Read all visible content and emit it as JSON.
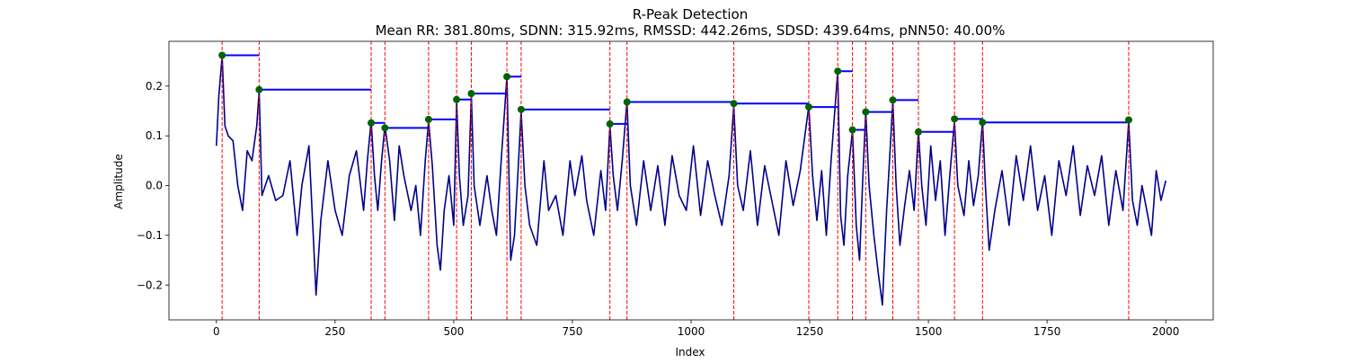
{
  "chart_data": {
    "type": "line",
    "title": "R-Peak Detection",
    "subtitle": "Mean RR: 381.80ms, SDNN: 315.92ms, RMSSD: 442.26ms, SDSD: 439.64ms, pNN50: 40.00%",
    "xlabel": "Index",
    "ylabel": "Amplitude",
    "xlim": [
      -100,
      2100
    ],
    "ylim": [
      -0.27,
      0.29
    ],
    "x_ticks": [
      0,
      250,
      500,
      750,
      1000,
      1250,
      1500,
      1750,
      2000
    ],
    "x_tick_labels": [
      "0",
      "250",
      "500",
      "750",
      "1000",
      "1250",
      "1500",
      "1750",
      "2000"
    ],
    "y_ticks": [
      -0.2,
      -0.1,
      0.0,
      0.1,
      0.2
    ],
    "y_tick_labels": [
      "−0.2",
      "−0.1",
      "0.0",
      "0.1",
      "0.2"
    ],
    "grid": false,
    "signal": {
      "color": "#00008b",
      "keypoints": [
        [
          0,
          0.08
        ],
        [
          5,
          0.18
        ],
        [
          12,
          0.26
        ],
        [
          18,
          0.12
        ],
        [
          25,
          0.1
        ],
        [
          35,
          0.09
        ],
        [
          45,
          0.0
        ],
        [
          55,
          -0.05
        ],
        [
          65,
          0.07
        ],
        [
          75,
          0.05
        ],
        [
          85,
          0.12
        ],
        [
          90,
          0.19
        ],
        [
          96,
          -0.02
        ],
        [
          110,
          0.02
        ],
        [
          125,
          -0.03
        ],
        [
          140,
          -0.02
        ],
        [
          155,
          0.05
        ],
        [
          170,
          -0.1
        ],
        [
          180,
          0.0
        ],
        [
          195,
          0.08
        ],
        [
          205,
          -0.12
        ],
        [
          210,
          -0.22
        ],
        [
          220,
          -0.07
        ],
        [
          235,
          0.05
        ],
        [
          250,
          -0.05
        ],
        [
          265,
          -0.1
        ],
        [
          280,
          0.02
        ],
        [
          295,
          0.07
        ],
        [
          310,
          -0.05
        ],
        [
          318,
          0.05
        ],
        [
          326,
          0.13
        ],
        [
          333,
          0.02
        ],
        [
          340,
          -0.05
        ],
        [
          348,
          0.05
        ],
        [
          355,
          0.12
        ],
        [
          365,
          0.05
        ],
        [
          375,
          -0.07
        ],
        [
          385,
          0.08
        ],
        [
          395,
          0.02
        ],
        [
          410,
          -0.05
        ],
        [
          420,
          0.0
        ],
        [
          430,
          -0.1
        ],
        [
          440,
          0.05
        ],
        [
          447,
          0.13
        ],
        [
          455,
          0.04
        ],
        [
          465,
          -0.12
        ],
        [
          472,
          -0.17
        ],
        [
          480,
          -0.05
        ],
        [
          490,
          0.02
        ],
        [
          500,
          -0.08
        ],
        [
          506,
          0.17
        ],
        [
          512,
          0.02
        ],
        [
          520,
          -0.08
        ],
        [
          530,
          -0.02
        ],
        [
          537,
          0.18
        ],
        [
          543,
          0.0
        ],
        [
          555,
          -0.08
        ],
        [
          570,
          0.02
        ],
        [
          580,
          -0.05
        ],
        [
          590,
          -0.1
        ],
        [
          600,
          0.05
        ],
        [
          612,
          0.22
        ],
        [
          620,
          -0.15
        ],
        [
          628,
          -0.1
        ],
        [
          635,
          0.02
        ],
        [
          642,
          0.15
        ],
        [
          650,
          0.0
        ],
        [
          660,
          -0.08
        ],
        [
          675,
          -0.12
        ],
        [
          690,
          0.05
        ],
        [
          700,
          -0.05
        ],
        [
          715,
          -0.02
        ],
        [
          730,
          -0.1
        ],
        [
          745,
          0.05
        ],
        [
          755,
          -0.02
        ],
        [
          770,
          0.06
        ],
        [
          780,
          -0.03
        ],
        [
          795,
          -0.1
        ],
        [
          810,
          0.03
        ],
        [
          820,
          -0.05
        ],
        [
          829,
          0.12
        ],
        [
          836,
          0.02
        ],
        [
          845,
          -0.05
        ],
        [
          855,
          0.05
        ],
        [
          865,
          0.17
        ],
        [
          872,
          0.0
        ],
        [
          885,
          -0.08
        ],
        [
          900,
          0.05
        ],
        [
          915,
          -0.05
        ],
        [
          930,
          0.04
        ],
        [
          945,
          -0.08
        ],
        [
          960,
          0.06
        ],
        [
          975,
          -0.02
        ],
        [
          990,
          -0.05
        ],
        [
          1005,
          0.08
        ],
        [
          1020,
          -0.06
        ],
        [
          1035,
          0.05
        ],
        [
          1050,
          -0.02
        ],
        [
          1065,
          -0.08
        ],
        [
          1080,
          0.02
        ],
        [
          1090,
          0.16
        ],
        [
          1098,
          0.0
        ],
        [
          1110,
          -0.05
        ],
        [
          1125,
          0.07
        ],
        [
          1140,
          -0.08
        ],
        [
          1155,
          0.04
        ],
        [
          1170,
          -0.03
        ],
        [
          1185,
          -0.1
        ],
        [
          1200,
          0.05
        ],
        [
          1215,
          -0.04
        ],
        [
          1230,
          0.03
        ],
        [
          1248,
          0.16
        ],
        [
          1256,
          0.02
        ],
        [
          1265,
          -0.07
        ],
        [
          1275,
          0.03
        ],
        [
          1285,
          -0.1
        ],
        [
          1295,
          0.05
        ],
        [
          1309,
          0.23
        ],
        [
          1315,
          -0.06
        ],
        [
          1322,
          -0.12
        ],
        [
          1330,
          0.02
        ],
        [
          1340,
          0.11
        ],
        [
          1348,
          -0.08
        ],
        [
          1355,
          -0.15
        ],
        [
          1362,
          0.02
        ],
        [
          1368,
          0.15
        ],
        [
          1375,
          0.0
        ],
        [
          1385,
          -0.1
        ],
        [
          1395,
          -0.18
        ],
        [
          1403,
          -0.24
        ],
        [
          1412,
          -0.05
        ],
        [
          1418,
          0.05
        ],
        [
          1425,
          0.17
        ],
        [
          1432,
          0.0
        ],
        [
          1440,
          -0.12
        ],
        [
          1450,
          -0.04
        ],
        [
          1460,
          0.03
        ],
        [
          1470,
          -0.05
        ],
        [
          1479,
          0.11
        ],
        [
          1486,
          0.0
        ],
        [
          1495,
          -0.08
        ],
        [
          1505,
          0.08
        ],
        [
          1515,
          -0.03
        ],
        [
          1525,
          0.05
        ],
        [
          1535,
          -0.1
        ],
        [
          1545,
          0.02
        ],
        [
          1555,
          0.13
        ],
        [
          1562,
          0.0
        ],
        [
          1575,
          -0.06
        ],
        [
          1585,
          0.05
        ],
        [
          1595,
          -0.04
        ],
        [
          1605,
          0.02
        ],
        [
          1614,
          0.13
        ],
        [
          1620,
          0.0
        ],
        [
          1628,
          -0.13
        ],
        [
          1640,
          -0.05
        ],
        [
          1655,
          0.03
        ],
        [
          1670,
          -0.08
        ],
        [
          1685,
          0.06
        ],
        [
          1700,
          -0.03
        ],
        [
          1715,
          0.08
        ],
        [
          1730,
          -0.05
        ],
        [
          1745,
          0.02
        ],
        [
          1760,
          -0.1
        ],
        [
          1775,
          0.05
        ],
        [
          1790,
          -0.02
        ],
        [
          1805,
          0.08
        ],
        [
          1820,
          -0.06
        ],
        [
          1835,
          0.04
        ],
        [
          1850,
          -0.02
        ],
        [
          1865,
          0.06
        ],
        [
          1880,
          -0.08
        ],
        [
          1895,
          0.03
        ],
        [
          1910,
          -0.05
        ],
        [
          1922,
          0.13
        ],
        [
          1930,
          -0.03
        ],
        [
          1940,
          -0.08
        ],
        [
          1950,
          0.0
        ],
        [
          1960,
          -0.05
        ],
        [
          1970,
          -0.1
        ],
        [
          1980,
          0.03
        ],
        [
          1990,
          -0.03
        ],
        [
          2000,
          0.01
        ]
      ]
    },
    "peaks": {
      "marker_color": "#006400",
      "line_color": "#ff0000",
      "points": [
        [
          12,
          0.262
        ],
        [
          90,
          0.193
        ],
        [
          326,
          0.126
        ],
        [
          355,
          0.116
        ],
        [
          447,
          0.133
        ],
        [
          506,
          0.173
        ],
        [
          537,
          0.185
        ],
        [
          612,
          0.219
        ],
        [
          642,
          0.153
        ],
        [
          829,
          0.124
        ],
        [
          865,
          0.168
        ],
        [
          1090,
          0.165
        ],
        [
          1248,
          0.158
        ],
        [
          1309,
          0.23
        ],
        [
          1340,
          0.112
        ],
        [
          1368,
          0.148
        ],
        [
          1425,
          0.172
        ],
        [
          1479,
          0.108
        ],
        [
          1555,
          0.134
        ],
        [
          1614,
          0.127
        ],
        [
          1922,
          0.132
        ]
      ]
    },
    "rr_intervals": {
      "color": "#0000ff"
    }
  }
}
